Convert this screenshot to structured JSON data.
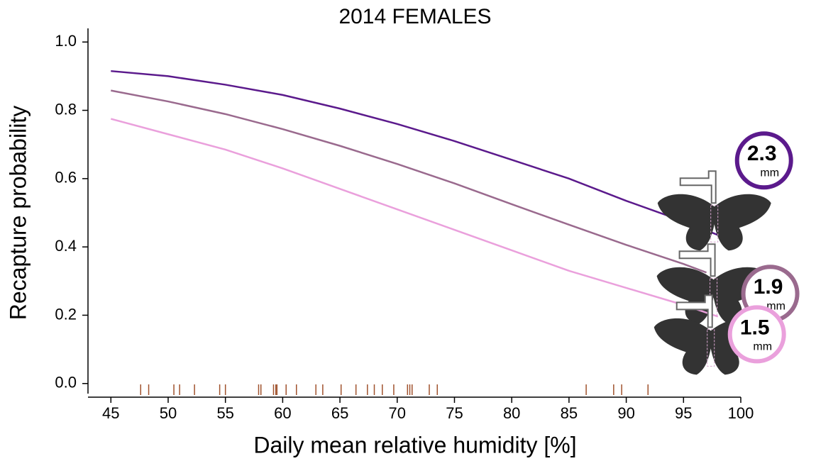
{
  "chart_data": {
    "type": "line",
    "title": "2014 FEMALES",
    "xlabel": "Daily mean relative humidity [%]",
    "ylabel": "Recapture probability",
    "xlim": [
      43,
      100
    ],
    "xticks": [
      45,
      50,
      55,
      60,
      65,
      70,
      75,
      80,
      85,
      90,
      95,
      100
    ],
    "ylim": [
      -0.04,
      1.04
    ],
    "yticks": [
      {
        "value": 0,
        "label": "0.0"
      },
      {
        "value": 0.2,
        "label": "0.2"
      },
      {
        "value": 0.4,
        "label": "0.4"
      },
      {
        "value": 0.6,
        "label": "0.6"
      },
      {
        "value": 0.8,
        "label": "0.8"
      },
      {
        "value": 1,
        "label": "1.0"
      }
    ],
    "grid": false,
    "series": [
      {
        "size_label": "2.3",
        "unit": "mm",
        "color": "#5b1a8c",
        "x": [
          45,
          50,
          55,
          60,
          65,
          70,
          75,
          80,
          85,
          90,
          95,
          98
        ],
        "values": [
          0.915,
          0.9,
          0.875,
          0.845,
          0.805,
          0.76,
          0.71,
          0.655,
          0.6,
          0.535,
          0.475,
          0.435
        ]
      },
      {
        "size_label": "1.9",
        "unit": "mm",
        "color": "#9a6a8e",
        "x": [
          45,
          50,
          55,
          60,
          65,
          70,
          75,
          80,
          85,
          90,
          95,
          97
        ],
        "values": [
          0.858,
          0.826,
          0.789,
          0.745,
          0.696,
          0.643,
          0.586,
          0.525,
          0.465,
          0.406,
          0.35,
          0.325
        ]
      },
      {
        "size_label": "1.5",
        "unit": "mm",
        "color": "#eaa0dc",
        "x": [
          45,
          50,
          55,
          60,
          65,
          70,
          75,
          80,
          85,
          90,
          95,
          98
        ],
        "values": [
          0.775,
          0.73,
          0.685,
          0.63,
          0.57,
          0.51,
          0.45,
          0.39,
          0.33,
          0.28,
          0.23,
          0.196
        ]
      }
    ],
    "rug": {
      "color": "#a0522d",
      "x": [
        47.6,
        48.3,
        50.5,
        51.0,
        52.3,
        54.5,
        55.0,
        57.9,
        58.1,
        59.2,
        59.4,
        59.5,
        60.3,
        61.2,
        62.9,
        63.5,
        65.1,
        66.4,
        67.4,
        68.0,
        68.7,
        69.7,
        70.9,
        71.1,
        71.3,
        72.8,
        73.5,
        86.5,
        88.9,
        89.6,
        91.9
      ]
    }
  }
}
